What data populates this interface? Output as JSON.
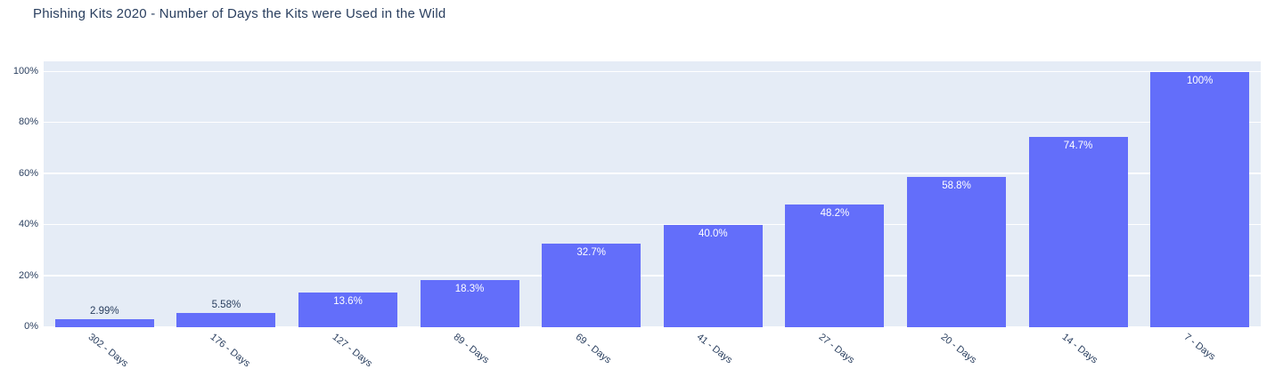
{
  "colors": {
    "bar": "#636efa",
    "plot_bg": "#e5ecf6",
    "grid": "#ffffff",
    "text": "#2a3f5f",
    "inside_label": "#ffffff"
  },
  "chart_data": {
    "type": "bar",
    "title": "Phishing Kits 2020 - Number of Days the Kits were Used in the Wild",
    "xlabel": "",
    "ylabel": "",
    "categories": [
      "302 - Days",
      "176 - Days",
      "127 - Days",
      "89 - Days",
      "69 - Days",
      "41 - Days",
      "27 - Days",
      "20 - Days",
      "14 - Days",
      "7 - Days"
    ],
    "values": [
      2.99,
      5.58,
      13.6,
      18.3,
      32.7,
      40.0,
      48.2,
      58.8,
      74.7,
      100
    ],
    "value_labels": [
      "2.99%",
      "5.58%",
      "13.6%",
      "18.3%",
      "32.7%",
      "40.0%",
      "48.2%",
      "58.8%",
      "74.7%",
      "100%"
    ],
    "y_ticks": [
      {
        "label": "0%",
        "value": 0
      },
      {
        "label": "20%",
        "value": 20
      },
      {
        "label": "40%",
        "value": 40
      },
      {
        "label": "60%",
        "value": 60
      },
      {
        "label": "80%",
        "value": 80
      },
      {
        "label": "100%",
        "value": 100
      }
    ],
    "ylim": [
      0,
      104.2
    ],
    "grid": true,
    "legend": false,
    "x_tick_angle_deg": 38
  }
}
